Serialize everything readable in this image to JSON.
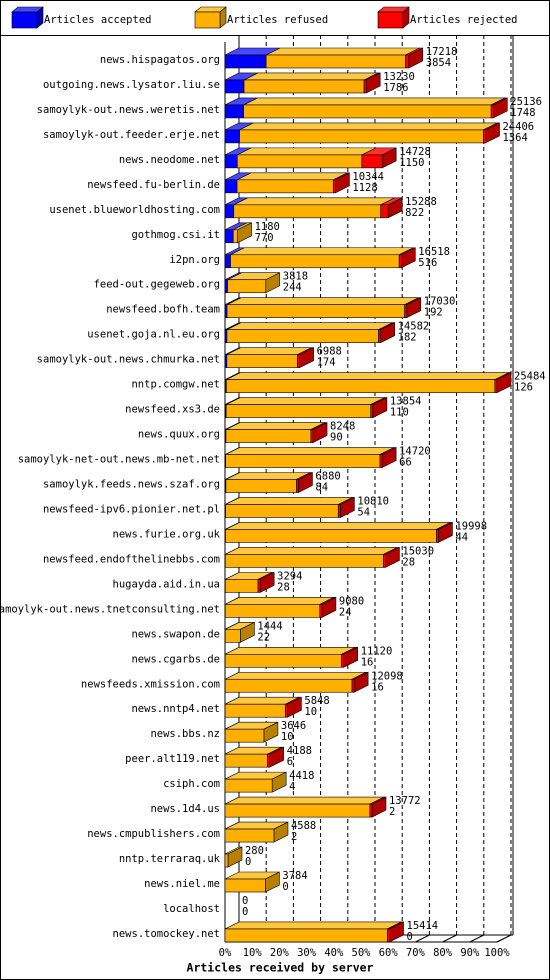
{
  "chart_data": {
    "type": "bar3d_stacked_horizontal",
    "xlabel": "Articles received by server",
    "categories": [
      "news.hispagatos.org",
      "outgoing.news.lysator.liu.se",
      "samoylyk-out.news.weretis.net",
      "samoylyk-out.feeder.erje.net",
      "news.neodome.net",
      "newsfeed.fu-berlin.de",
      "usenet.blueworldhosting.com",
      "gothmog.csi.it",
      "i2pn.org",
      "feed-out.gegeweb.org",
      "newsfeed.bofh.team",
      "usenet.goja.nl.eu.org",
      "samoylyk-out.news.chmurka.net",
      "nntp.comgw.net",
      "newsfeed.xs3.de",
      "news.quux.org",
      "samoylyk-net-out.news.mb-net.net",
      "samoylyk.feeds.news.szaf.org",
      "newsfeed-ipv6.pionier.net.pl",
      "news.furie.org.uk",
      "newsfeed.endofthelinebbs.com",
      "hugayda.aid.in.ua",
      "samoylyk-out.news.tnetconsulting.net",
      "news.swapon.de",
      "news.cgarbs.de",
      "newsfeeds.xmission.com",
      "news.nntp4.net",
      "news.bbs.nz",
      "peer.alt119.net",
      "csiph.com",
      "news.1d4.us",
      "news.cmpublishers.com",
      "nntp.terraraq.uk",
      "news.niel.me",
      "localhost",
      "news.tomockey.net"
    ],
    "totals": [
      17218,
      13230,
      25136,
      24406,
      14728,
      10344,
      15288,
      1180,
      16518,
      3818,
      17030,
      14582,
      6988,
      25484,
      13854,
      8248,
      14720,
      6880,
      10810,
      19998,
      15030,
      3294,
      9080,
      1444,
      11120,
      12098,
      5848,
      3646,
      4188,
      4418,
      13772,
      4588,
      280,
      3784,
      0,
      15414
    ],
    "series": [
      {
        "name": "Articles accepted",
        "color": "#0000ff",
        "top": "#4848ff",
        "side": "#0000b0",
        "values": [
          3854,
          1786,
          1748,
          1364,
          1150,
          1128,
          822,
          770,
          516,
          244,
          192,
          182,
          174,
          126,
          110,
          90,
          66,
          84,
          54,
          44,
          28,
          28,
          24,
          22,
          16,
          16,
          10,
          10,
          6,
          4,
          2,
          2,
          0,
          0,
          0,
          0
        ]
      },
      {
        "name": "Articles refused",
        "color": "#ffb000",
        "top": "#ffc840",
        "side": "#b88000",
        "values": [
          13064,
          11244,
          23188,
          22842,
          11678,
          9016,
          13766,
          410,
          15802,
          3574,
          16638,
          14200,
          6614,
          25158,
          13544,
          7958,
          14454,
          6596,
          10556,
          19754,
          14802,
          3066,
          8856,
          1422,
          10904,
          11882,
          5638,
          3636,
          3982,
          4414,
          13570,
          4586,
          280,
          3784,
          0,
          15214
        ]
      },
      {
        "name": "Articles rejected",
        "color": "#ff0000",
        "top": "#ff3030",
        "side": "#b00000",
        "values": [
          300,
          200,
          200,
          200,
          1900,
          200,
          700,
          0,
          200,
          0,
          200,
          200,
          200,
          200,
          200,
          200,
          200,
          200,
          200,
          200,
          200,
          200,
          200,
          0,
          200,
          200,
          200,
          0,
          200,
          0,
          200,
          0,
          0,
          0,
          0,
          200
        ]
      }
    ],
    "xlim": [
      0,
      25484
    ],
    "xticks": [
      {
        "value": 0,
        "label": "0%"
      },
      {
        "value": 2548.4,
        "label": "10%"
      },
      {
        "value": 5096.8,
        "label": "20%"
      },
      {
        "value": 7645.2,
        "label": "30%"
      },
      {
        "value": 10193.6,
        "label": "40%"
      },
      {
        "value": 12742,
        "label": "50%"
      },
      {
        "value": 15290.4,
        "label": "60%"
      },
      {
        "value": 17838.8,
        "label": "70%"
      },
      {
        "value": 20387.2,
        "label": "80%"
      },
      {
        "value": 22935.6,
        "label": "90%"
      },
      {
        "value": 25484,
        "label": "100%"
      }
    ],
    "grid": true
  }
}
